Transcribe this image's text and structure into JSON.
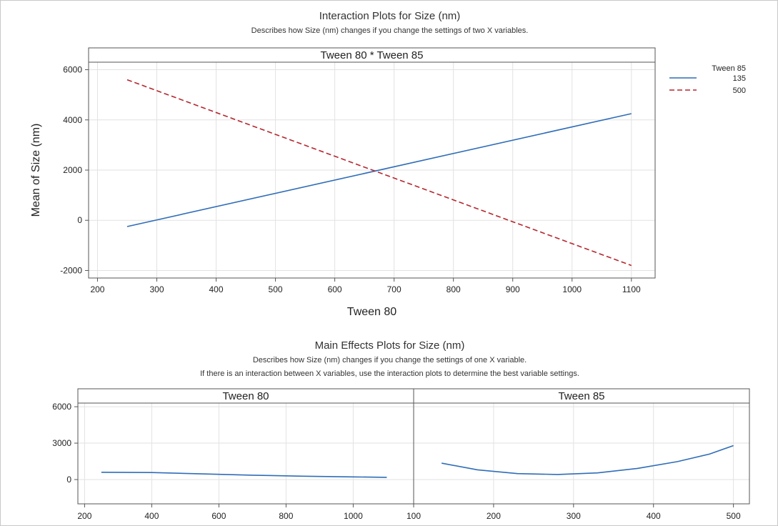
{
  "header": {
    "title": "Interaction Plots for Size (nm)",
    "subtitle": "Describes how Size (nm) changes if you change the settings of two X variables."
  },
  "main_effects_header": {
    "title": "Main Effects Plots for Size (nm)",
    "subtitle_line1": "Describes how Size (nm) changes if you change the settings of one X variable.",
    "subtitle_line2": "If there is an interaction between X variables, use the interaction plots to determine the best variable settings."
  },
  "colors": {
    "series_135": "#2f6db8",
    "series_500": "#b4262e",
    "grid": "#e2e2e2",
    "frame": "#555555",
    "strip": "#ffffff"
  },
  "chart_data": [
    {
      "type": "line",
      "panel": "Tween 80 * Tween 85",
      "xlabel": "Tween 80",
      "ylabel": "Mean of Size (nm)",
      "xlim": [
        185,
        1140
      ],
      "ylim": [
        -2300,
        6300
      ],
      "xticks": [
        200,
        300,
        400,
        500,
        600,
        700,
        800,
        900,
        1000,
        1100
      ],
      "yticks": [
        -2000,
        0,
        2000,
        4000,
        6000
      ],
      "grid": true,
      "legend_title": "Tween 85",
      "legend_position": "top-right",
      "series": [
        {
          "name": "135",
          "style": "solid",
          "x": [
            250,
            1100
          ],
          "y": [
            -250,
            4250
          ]
        },
        {
          "name": "500",
          "style": "dashed",
          "x": [
            250,
            1100
          ],
          "y": [
            5600,
            -1800
          ]
        }
      ]
    },
    {
      "type": "line",
      "panel": "Tween 80",
      "xlabel": "",
      "ylabel": "",
      "xlim": [
        180,
        1180
      ],
      "ylim": [
        -2000,
        6300
      ],
      "xticks": [
        200,
        400,
        600,
        800,
        1000
      ],
      "yticks": [
        0,
        3000,
        6000
      ],
      "grid": true,
      "series": [
        {
          "name": "",
          "style": "solid",
          "x": [
            250,
            400,
            550,
            700,
            850,
            1000,
            1100
          ],
          "y": [
            600,
            580,
            470,
            360,
            280,
            220,
            180
          ]
        }
      ]
    },
    {
      "type": "line",
      "panel": "Tween 85",
      "xlabel": "",
      "ylabel": "",
      "xlim": [
        100,
        520
      ],
      "ylim": [
        -2000,
        6300
      ],
      "xticks": [
        100,
        200,
        300,
        400,
        500
      ],
      "yticks": [],
      "grid": true,
      "series": [
        {
          "name": "",
          "style": "solid",
          "x": [
            135,
            180,
            230,
            280,
            330,
            380,
            430,
            470,
            500
          ],
          "y": [
            1350,
            800,
            490,
            420,
            550,
            920,
            1480,
            2100,
            2800
          ]
        }
      ]
    }
  ]
}
